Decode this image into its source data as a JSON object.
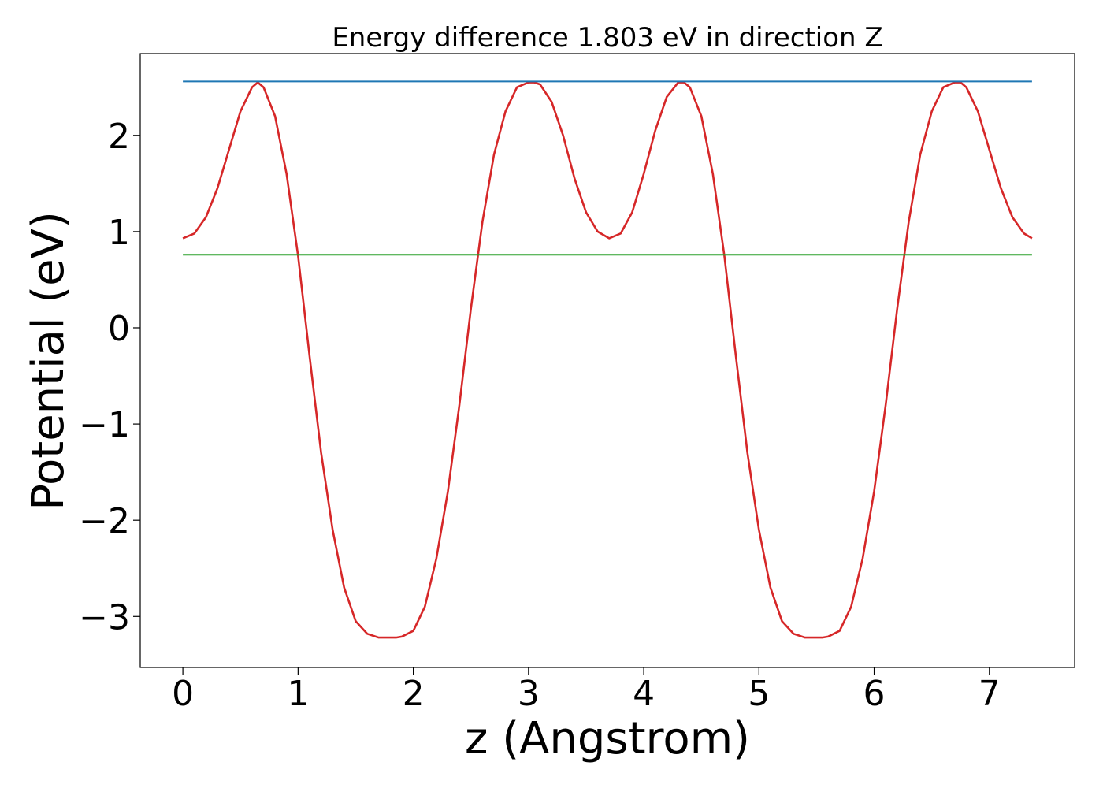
{
  "chart_data": {
    "type": "line",
    "title": "Energy difference 1.803 eV in direction Z",
    "xlabel": "z (Angstrom)",
    "ylabel": "Potential (eV)",
    "xlim": [
      -0.37,
      7.74
    ],
    "ylim": [
      -3.53,
      2.85
    ],
    "xticks": [
      0,
      1,
      2,
      3,
      4,
      5,
      6,
      7
    ],
    "xtick_labels": [
      "0",
      "1",
      "2",
      "3",
      "4",
      "5",
      "6",
      "7"
    ],
    "yticks": [
      -3,
      -2,
      -1,
      0,
      1,
      2
    ],
    "ytick_labels": [
      "−3",
      "−2",
      "−1",
      "0",
      "1",
      "2"
    ],
    "grid": false,
    "series": [
      {
        "color": "#d62728",
        "x": [
          0.0,
          0.1,
          0.2,
          0.3,
          0.4,
          0.5,
          0.6,
          0.65,
          0.7,
          0.8,
          0.9,
          1.0,
          1.1,
          1.2,
          1.3,
          1.4,
          1.5,
          1.6,
          1.7,
          1.8,
          1.85,
          1.9,
          2.0,
          2.1,
          2.2,
          2.3,
          2.4,
          2.5,
          2.6,
          2.7,
          2.8,
          2.9,
          3.0,
          3.05,
          3.1,
          3.2,
          3.3,
          3.4,
          3.5,
          3.6,
          3.7,
          3.8,
          3.9,
          4.0,
          4.1,
          4.2,
          4.3,
          4.35,
          4.4,
          4.5,
          4.6,
          4.7,
          4.8,
          4.9,
          5.0,
          5.1,
          5.2,
          5.3,
          5.4,
          5.5,
          5.55,
          5.6,
          5.7,
          5.8,
          5.9,
          6.0,
          6.1,
          6.2,
          6.3,
          6.4,
          6.5,
          6.6,
          6.7,
          6.75,
          6.8,
          6.9,
          7.0,
          7.1,
          7.2,
          7.3,
          7.37
        ],
        "y": [
          0.93,
          0.98,
          1.15,
          1.45,
          1.85,
          2.25,
          2.5,
          2.55,
          2.5,
          2.2,
          1.6,
          0.75,
          -0.3,
          -1.3,
          -2.1,
          -2.7,
          -3.05,
          -3.18,
          -3.22,
          -3.22,
          -3.22,
          -3.21,
          -3.15,
          -2.9,
          -2.4,
          -1.7,
          -0.8,
          0.2,
          1.1,
          1.8,
          2.25,
          2.5,
          2.55,
          2.55,
          2.53,
          2.35,
          2.0,
          1.55,
          1.2,
          1.0,
          0.93,
          0.98,
          1.2,
          1.6,
          2.05,
          2.4,
          2.55,
          2.55,
          2.5,
          2.2,
          1.6,
          0.75,
          -0.3,
          -1.3,
          -2.1,
          -2.7,
          -3.05,
          -3.18,
          -3.22,
          -3.22,
          -3.22,
          -3.21,
          -3.15,
          -2.9,
          -2.4,
          -1.7,
          -0.8,
          0.2,
          1.1,
          1.8,
          2.25,
          2.5,
          2.55,
          2.55,
          2.5,
          2.25,
          1.85,
          1.45,
          1.15,
          0.98,
          0.93
        ]
      },
      {
        "color": "#1f77b4",
        "x": [
          0.0,
          7.37
        ],
        "y": [
          2.56,
          2.56
        ]
      },
      {
        "color": "#2ca02c",
        "x": [
          0.0,
          7.37
        ],
        "y": [
          0.76,
          0.76
        ]
      }
    ]
  }
}
